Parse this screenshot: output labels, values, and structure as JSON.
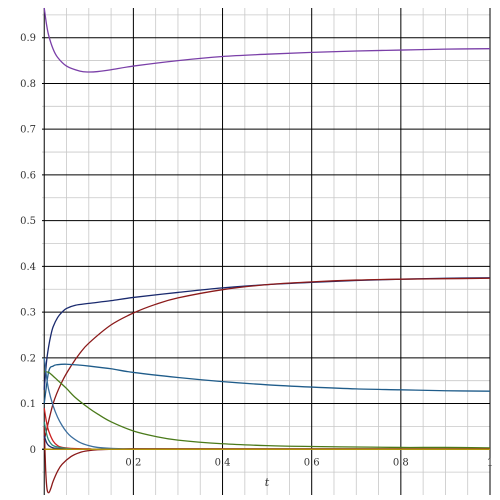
{
  "chart_data": {
    "type": "line",
    "title": "",
    "xlabel": "t",
    "ylabel": "",
    "xlim": [
      -0.005,
      1.0
    ],
    "ylim": [
      -0.1,
      0.965
    ],
    "grid": true,
    "legend": "none",
    "xticks": [
      {
        "value": 0.2,
        "label": "0.2"
      },
      {
        "value": 0.4,
        "label": "0.4"
      },
      {
        "value": 0.6,
        "label": "0.6"
      },
      {
        "value": 0.8,
        "label": "0.8"
      },
      {
        "value": 1.0,
        "label": "1"
      }
    ],
    "yticks": [
      {
        "value": 0,
        "label": "0"
      },
      {
        "value": 0.1,
        "label": "0.1"
      },
      {
        "value": 0.2,
        "label": "0.2"
      },
      {
        "value": 0.3,
        "label": "0.3"
      },
      {
        "value": 0.4,
        "label": "0.4"
      },
      {
        "value": 0.5,
        "label": "0.5"
      },
      {
        "value": 0.6,
        "label": "0.6"
      },
      {
        "value": 0.7,
        "label": "0.7"
      },
      {
        "value": 0.8,
        "label": "0.8"
      },
      {
        "value": 0.9,
        "label": "0.9"
      }
    ],
    "series": [
      {
        "color": "#7a3fa8",
        "x": [
          0,
          0.005,
          0.01,
          0.02,
          0.03,
          0.05,
          0.08,
          0.1,
          0.12,
          0.15,
          0.2,
          0.3,
          0.4,
          0.5,
          0.6,
          0.7,
          0.8,
          0.9,
          1.0
        ],
        "y": [
          0.965,
          0.93,
          0.905,
          0.875,
          0.857,
          0.838,
          0.827,
          0.825,
          0.826,
          0.83,
          0.838,
          0.85,
          0.859,
          0.864,
          0.868,
          0.871,
          0.873,
          0.875,
          0.876
        ]
      },
      {
        "color": "#1a2a6e",
        "x": [
          0,
          0.005,
          0.01,
          0.015,
          0.02,
          0.03,
          0.04,
          0.05,
          0.07,
          0.1,
          0.15,
          0.2,
          0.3,
          0.4,
          0.5,
          0.6,
          0.7,
          0.8,
          0.9,
          1.0
        ],
        "y": [
          0.13,
          0.19,
          0.225,
          0.25,
          0.268,
          0.288,
          0.3,
          0.308,
          0.315,
          0.319,
          0.325,
          0.332,
          0.343,
          0.353,
          0.36,
          0.365,
          0.369,
          0.372,
          0.374,
          0.375
        ]
      },
      {
        "color": "#8b1a1a",
        "x": [
          0,
          0.02,
          0.04,
          0.06,
          0.08,
          0.1,
          0.15,
          0.2,
          0.25,
          0.3,
          0.4,
          0.5,
          0.6,
          0.7,
          0.8,
          0.9,
          1.0
        ],
        "y": [
          0.02,
          0.1,
          0.148,
          0.182,
          0.21,
          0.232,
          0.272,
          0.298,
          0.317,
          0.331,
          0.349,
          0.36,
          0.366,
          0.37,
          0.372,
          0.373,
          0.374
        ]
      },
      {
        "color": "#1f5c8a",
        "x": [
          0,
          0.01,
          0.02,
          0.03,
          0.05,
          0.08,
          0.1,
          0.15,
          0.2,
          0.3,
          0.4,
          0.5,
          0.6,
          0.7,
          0.8,
          0.9,
          1.0
        ],
        "y": [
          0.1,
          0.17,
          0.182,
          0.185,
          0.186,
          0.184,
          0.182,
          0.176,
          0.168,
          0.157,
          0.148,
          0.141,
          0.136,
          0.132,
          0.13,
          0.128,
          0.127
        ]
      },
      {
        "color": "#4a7a1a",
        "x": [
          0,
          0.01,
          0.02,
          0.03,
          0.05,
          0.07,
          0.1,
          0.12,
          0.15,
          0.2,
          0.25,
          0.3,
          0.4,
          0.5,
          0.6,
          0.7,
          0.8,
          0.9,
          1.0
        ],
        "y": [
          0.17,
          0.168,
          0.16,
          0.151,
          0.133,
          0.113,
          0.09,
          0.077,
          0.06,
          0.04,
          0.028,
          0.02,
          0.012,
          0.008,
          0.006,
          0.005,
          0.004,
          0.004,
          0.003
        ]
      },
      {
        "color": "#3b6e9e",
        "x": [
          0,
          0.005,
          0.01,
          0.02,
          0.03,
          0.04,
          0.05,
          0.06,
          0.08,
          0.1,
          0.12,
          0.15,
          0.2,
          0.3,
          0.5,
          1.0
        ],
        "y": [
          0.2,
          0.16,
          0.13,
          0.095,
          0.07,
          0.052,
          0.038,
          0.028,
          0.015,
          0.008,
          0.004,
          0.002,
          0.001,
          0.0005,
          0.0003,
          0.0002
        ]
      },
      {
        "color": "#8b1a1a",
        "x": [
          0,
          0.003,
          0.006,
          0.01,
          0.015,
          0.02,
          0.03,
          0.04,
          0.06,
          0.08,
          0.1,
          0.12,
          0.15,
          0.2,
          0.3,
          0.5,
          1.0
        ],
        "y": [
          0.05,
          -0.04,
          -0.085,
          -0.095,
          -0.085,
          -0.07,
          -0.048,
          -0.033,
          -0.016,
          -0.007,
          -0.003,
          -0.001,
          0.0,
          0.001,
          0.001,
          0.001,
          0.001
        ]
      },
      {
        "color": "#cc2222",
        "x": [
          0,
          0.005,
          0.01,
          0.02,
          0.03,
          0.04,
          0.06,
          0.1,
          0.2,
          1.0
        ],
        "y": [
          0.09,
          0.06,
          0.04,
          0.018,
          0.008,
          0.004,
          0.002,
          0.001,
          0.0,
          0.0
        ]
      },
      {
        "color": "#2a8a7a",
        "x": [
          0,
          0.005,
          0.01,
          0.02,
          0.04,
          0.06,
          0.1,
          1.0
        ],
        "y": [
          0.06,
          0.035,
          0.02,
          0.008,
          0.003,
          0.001,
          0.0,
          0.0
        ]
      },
      {
        "color": "#1a2a6e",
        "x": [
          0,
          0.005,
          0.01,
          0.02,
          0.04,
          0.06,
          0.1,
          1.0
        ],
        "y": [
          0.03,
          0.015,
          0.008,
          0.003,
          0.001,
          0.0,
          0.0,
          0.0
        ]
      },
      {
        "color": "#c8a000",
        "x": [
          0,
          0.1,
          0.3,
          0.6,
          1.0
        ],
        "y": [
          0.0,
          0.0,
          0.0,
          0.0,
          0.0
        ]
      }
    ]
  }
}
